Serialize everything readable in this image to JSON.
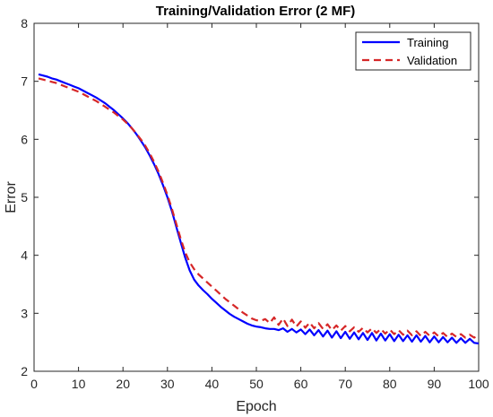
{
  "chart_data": {
    "type": "line",
    "title": "Training/Validation Error (2 MF)",
    "xlabel": "Epoch",
    "ylabel": "Error",
    "xlim": [
      0,
      100
    ],
    "ylim": [
      2,
      8
    ],
    "xticks": [
      0,
      10,
      20,
      30,
      40,
      50,
      60,
      70,
      80,
      90,
      100
    ],
    "yticks": [
      2,
      3,
      4,
      5,
      6,
      7,
      8
    ],
    "grid": false,
    "legend_position": "top-right",
    "series": [
      {
        "name": "Training",
        "color": "#0000ff",
        "dash": "solid",
        "x": [
          1,
          2,
          3,
          4,
          5,
          6,
          7,
          8,
          9,
          10,
          11,
          12,
          13,
          14,
          15,
          16,
          17,
          18,
          19,
          20,
          21,
          22,
          23,
          24,
          25,
          26,
          27,
          28,
          29,
          30,
          31,
          32,
          33,
          34,
          35,
          36,
          37,
          38,
          39,
          40,
          41,
          42,
          43,
          44,
          45,
          46,
          47,
          48,
          49,
          50,
          51,
          52,
          53,
          54,
          55,
          56,
          57,
          58,
          59,
          60,
          61,
          62,
          63,
          64,
          65,
          66,
          67,
          68,
          69,
          70,
          71,
          72,
          73,
          74,
          75,
          76,
          77,
          78,
          79,
          80,
          81,
          82,
          83,
          84,
          85,
          86,
          87,
          88,
          89,
          90,
          91,
          92,
          93,
          94,
          95,
          96,
          97,
          98,
          99,
          100
        ],
        "y": [
          7.12,
          7.1,
          7.08,
          7.05,
          7.03,
          7.0,
          6.97,
          6.94,
          6.91,
          6.88,
          6.84,
          6.8,
          6.76,
          6.72,
          6.67,
          6.62,
          6.56,
          6.5,
          6.43,
          6.36,
          6.28,
          6.19,
          6.09,
          5.98,
          5.86,
          5.72,
          5.57,
          5.4,
          5.21,
          5.0,
          4.76,
          4.49,
          4.22,
          3.96,
          3.74,
          3.58,
          3.48,
          3.4,
          3.33,
          3.25,
          3.18,
          3.11,
          3.05,
          2.99,
          2.94,
          2.9,
          2.86,
          2.82,
          2.79,
          2.77,
          2.76,
          2.74,
          2.73,
          2.73,
          2.71,
          2.74,
          2.68,
          2.73,
          2.67,
          2.72,
          2.64,
          2.72,
          2.62,
          2.71,
          2.6,
          2.7,
          2.58,
          2.69,
          2.57,
          2.68,
          2.56,
          2.67,
          2.55,
          2.66,
          2.54,
          2.66,
          2.53,
          2.65,
          2.53,
          2.64,
          2.52,
          2.63,
          2.52,
          2.62,
          2.51,
          2.62,
          2.51,
          2.61,
          2.5,
          2.6,
          2.5,
          2.59,
          2.5,
          2.58,
          2.49,
          2.57,
          2.49,
          2.56,
          2.49,
          2.48
        ]
      },
      {
        "name": "Validation",
        "color": "#d62728",
        "dash": "dashed",
        "x": [
          1,
          2,
          3,
          4,
          5,
          6,
          7,
          8,
          9,
          10,
          11,
          12,
          13,
          14,
          15,
          16,
          17,
          18,
          19,
          20,
          21,
          22,
          23,
          24,
          25,
          26,
          27,
          28,
          29,
          30,
          31,
          32,
          33,
          34,
          35,
          36,
          37,
          38,
          39,
          40,
          41,
          42,
          43,
          44,
          45,
          46,
          47,
          48,
          49,
          50,
          51,
          52,
          53,
          54,
          55,
          56,
          57,
          58,
          59,
          60,
          61,
          62,
          63,
          64,
          65,
          66,
          67,
          68,
          69,
          70,
          71,
          72,
          73,
          74,
          75,
          76,
          77,
          78,
          79,
          80,
          81,
          82,
          83,
          84,
          85,
          86,
          87,
          88,
          89,
          90,
          91,
          92,
          93,
          94,
          95,
          96,
          97,
          98,
          99,
          100
        ],
        "y": [
          7.05,
          7.03,
          7.01,
          6.99,
          6.97,
          6.94,
          6.91,
          6.88,
          6.85,
          6.82,
          6.78,
          6.74,
          6.7,
          6.66,
          6.61,
          6.56,
          6.51,
          6.46,
          6.4,
          6.34,
          6.27,
          6.19,
          6.1,
          6.0,
          5.89,
          5.76,
          5.61,
          5.44,
          5.25,
          5.04,
          4.8,
          4.54,
          4.28,
          4.05,
          3.88,
          3.76,
          3.67,
          3.6,
          3.53,
          3.46,
          3.39,
          3.32,
          3.25,
          3.19,
          3.13,
          3.07,
          3.01,
          2.96,
          2.91,
          2.88,
          2.87,
          2.9,
          2.83,
          2.93,
          2.8,
          2.91,
          2.78,
          2.89,
          2.77,
          2.86,
          2.75,
          2.84,
          2.74,
          2.83,
          2.73,
          2.81,
          2.71,
          2.79,
          2.7,
          2.78,
          2.69,
          2.76,
          2.68,
          2.75,
          2.67,
          2.74,
          2.66,
          2.73,
          2.65,
          2.72,
          2.64,
          2.71,
          2.63,
          2.7,
          2.62,
          2.69,
          2.61,
          2.68,
          2.61,
          2.67,
          2.6,
          2.66,
          2.59,
          2.65,
          2.59,
          2.64,
          2.58,
          2.63,
          2.58,
          2.62
        ]
      }
    ]
  }
}
